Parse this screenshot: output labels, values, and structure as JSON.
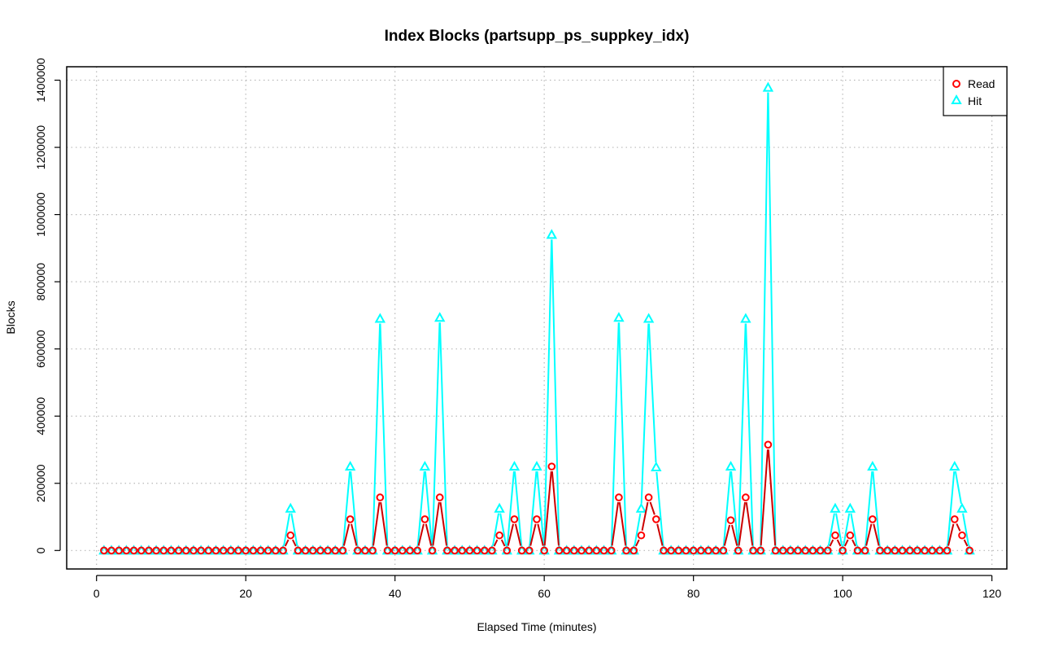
{
  "chart_data": {
    "type": "line",
    "title": "Index Blocks (partsupp_ps_suppkey_idx)",
    "xlabel": "Elapsed Time (minutes)",
    "ylabel": "Blocks",
    "xlim": [
      -4,
      122
    ],
    "ylim": [
      -55000,
      1440000
    ],
    "x_ticks": [
      0,
      20,
      40,
      60,
      80,
      100,
      120
    ],
    "y_ticks": [
      0,
      200000,
      400000,
      600000,
      800000,
      1000000,
      1200000,
      1400000
    ],
    "x_tick_labels": [
      "0",
      "20",
      "40",
      "60",
      "80",
      "100",
      "120"
    ],
    "y_tick_labels": [
      "0",
      "200000",
      "400000",
      "600000",
      "800000",
      "1000000",
      "1200000",
      "1400000"
    ],
    "grid": true,
    "legend_position": "top-right",
    "x": [
      1,
      2,
      3,
      4,
      5,
      6,
      7,
      8,
      9,
      10,
      11,
      12,
      13,
      14,
      15,
      16,
      17,
      18,
      19,
      20,
      21,
      22,
      23,
      24,
      25,
      26,
      27,
      28,
      29,
      30,
      31,
      32,
      33,
      34,
      35,
      36,
      37,
      38,
      39,
      40,
      41,
      42,
      43,
      44,
      45,
      46,
      47,
      48,
      49,
      50,
      51,
      52,
      53,
      54,
      55,
      56,
      57,
      58,
      59,
      60,
      61,
      62,
      63,
      64,
      65,
      66,
      67,
      68,
      69,
      70,
      71,
      72,
      73,
      74,
      75,
      76,
      77,
      78,
      79,
      80,
      81,
      82,
      83,
      84,
      85,
      86,
      87,
      88,
      89,
      90,
      91,
      92,
      93,
      94,
      95,
      96,
      97,
      98,
      99,
      100,
      101,
      102,
      103,
      104,
      105,
      106,
      107,
      108,
      109,
      110,
      111,
      112,
      113,
      114,
      115,
      116,
      117
    ],
    "series": [
      {
        "name": "Read",
        "color": "#ff0000",
        "line_color": "#cc0000",
        "marker": "circle",
        "values": [
          0,
          0,
          0,
          0,
          0,
          0,
          0,
          0,
          0,
          0,
          0,
          0,
          0,
          0,
          0,
          0,
          0,
          0,
          0,
          0,
          0,
          0,
          0,
          0,
          0,
          45000,
          0,
          0,
          0,
          0,
          0,
          0,
          0,
          93000,
          0,
          0,
          0,
          158000,
          0,
          0,
          0,
          0,
          0,
          93000,
          0,
          158000,
          0,
          0,
          0,
          0,
          0,
          0,
          0,
          45000,
          0,
          93000,
          0,
          0,
          93000,
          0,
          250000,
          0,
          0,
          0,
          0,
          0,
          0,
          0,
          0,
          158000,
          0,
          0,
          45000,
          158000,
          93000,
          0,
          0,
          0,
          0,
          0,
          0,
          0,
          0,
          0,
          90000,
          0,
          158000,
          0,
          0,
          315000,
          0,
          0,
          0,
          0,
          0,
          0,
          0,
          0,
          45000,
          0,
          45000,
          0,
          0,
          93000,
          0,
          0,
          0,
          0,
          0,
          0,
          0,
          0,
          0,
          0,
          93000,
          45000,
          0
        ]
      },
      {
        "name": "Hit",
        "color": "#00ffff",
        "line_color": "#00ffff",
        "marker": "triangle",
        "values": [
          0,
          0,
          0,
          0,
          0,
          0,
          0,
          0,
          0,
          0,
          0,
          0,
          0,
          0,
          0,
          0,
          0,
          0,
          0,
          0,
          0,
          0,
          0,
          0,
          0,
          125000,
          0,
          0,
          0,
          0,
          0,
          0,
          0,
          250000,
          0,
          0,
          0,
          690000,
          0,
          0,
          0,
          0,
          0,
          250000,
          0,
          693000,
          0,
          0,
          0,
          0,
          0,
          0,
          0,
          125000,
          0,
          250000,
          0,
          0,
          250000,
          0,
          940000,
          0,
          0,
          0,
          0,
          0,
          0,
          0,
          0,
          693000,
          0,
          0,
          125000,
          690000,
          248000,
          0,
          0,
          0,
          0,
          0,
          0,
          0,
          0,
          0,
          250000,
          0,
          690000,
          0,
          0,
          1378000,
          0,
          0,
          0,
          0,
          0,
          0,
          0,
          0,
          125000,
          0,
          125000,
          0,
          0,
          250000,
          0,
          0,
          0,
          0,
          0,
          0,
          0,
          0,
          0,
          0,
          250000,
          125000,
          0
        ]
      }
    ]
  }
}
